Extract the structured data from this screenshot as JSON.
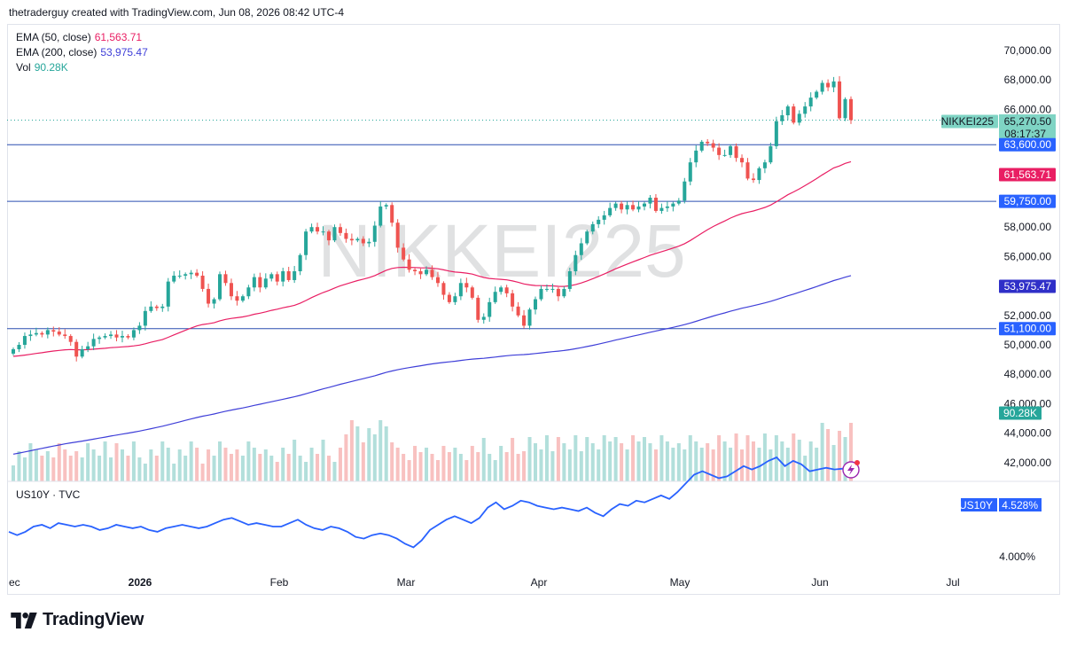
{
  "header": {
    "text": "thetraderguy created with TradingView.com, Jun 08, 2026 08:42 UTC-4"
  },
  "watermark": "NIKKEI225",
  "legend": {
    "ema50": {
      "label": "EMA (50, close)",
      "value": "61,563.71",
      "color": "#e91e63"
    },
    "ema200": {
      "label": "EMA (200, close)",
      "value": "53,975.47",
      "color": "#3f3fd8"
    },
    "vol": {
      "label": "Vol",
      "value": "90.28K",
      "color": "#26a69a"
    }
  },
  "price_tags": {
    "symbol": "NIKKEI225",
    "last": "65,270.50",
    "countdown": "08:17:37",
    "h1": "63,600.00",
    "ema50": "61,563.71",
    "h2": "59,750.00",
    "ema200": "53,975.47",
    "h3": "51,100.00",
    "vol": "90.28K"
  },
  "sub": {
    "title": "US10Y · TVC",
    "tag_symbol": "US10Y",
    "tag_value": "4.528%",
    "axis_label": "4.000%"
  },
  "logo_text": "TradingView",
  "colors": {
    "up": "#26a69a",
    "down": "#ef5350",
    "line_blue": "#2962ff",
    "ema50": "#e91e63",
    "ema200": "#3f3fd8",
    "hline": "#2a4fb0",
    "tag_blue": "#2962ff",
    "tag_green": "#26a69a",
    "tag_red": "#e91e63"
  },
  "chart_data": [
    {
      "type": "candlestick",
      "title": "NIKKEI225",
      "x_labels": [
        "ec",
        "2026",
        "Feb",
        "Mar",
        "Apr",
        "May",
        "Jun",
        "Jul"
      ],
      "y_ticks": [
        "70,000.00",
        "68,000.00",
        "66,000.00",
        "58,000.00",
        "56,000.00",
        "52,000.00",
        "50,000.00",
        "48,000.00",
        "46,000.00",
        "44,000.00",
        "42,000.00"
      ],
      "ylim": [
        41500,
        71000
      ],
      "horizontal_lines": [
        63600,
        59750,
        51100
      ],
      "closes": [
        49700,
        50000,
        50600,
        50700,
        50800,
        50700,
        51000,
        50900,
        50700,
        50600,
        50200,
        49200,
        49700,
        49900,
        50400,
        50500,
        50600,
        50700,
        50500,
        50600,
        50500,
        51000,
        51300,
        52300,
        52600,
        52500,
        52600,
        54300,
        54700,
        54700,
        54800,
        54900,
        54700,
        53800,
        52800,
        53100,
        54800,
        54200,
        53300,
        53000,
        53300,
        53900,
        54600,
        53900,
        54500,
        54800,
        54300,
        55000,
        54400,
        55000,
        56100,
        57700,
        58000,
        57700,
        57700,
        57100,
        58000,
        57600,
        57200,
        57100,
        57200,
        56900,
        57000,
        58100,
        59400,
        59500,
        58300,
        56600,
        55800,
        55100,
        55000,
        54800,
        55100,
        54600,
        54200,
        53400,
        52900,
        53300,
        54200,
        53900,
        53200,
        51700,
        51900,
        52900,
        53600,
        53900,
        53500,
        52600,
        52000,
        51300,
        52400,
        53100,
        53800,
        53800,
        53800,
        53300,
        53800,
        55000,
        56100,
        56900,
        57700,
        58200,
        58500,
        58800,
        59300,
        59600,
        59200,
        59500,
        59200,
        59400,
        59600,
        60000,
        59100,
        59300,
        59400,
        59600,
        59800,
        61100,
        62400,
        63200,
        63800,
        63700,
        63400,
        62900,
        62900,
        63500,
        62700,
        62400,
        61300,
        61200,
        62000,
        62400,
        63500,
        65200,
        65600,
        66200,
        65100,
        65700,
        66200,
        66800,
        67200,
        67800,
        67500,
        67900,
        65400,
        66700,
        65270.5
      ],
      "ema50": {
        "name": "EMA (50, close)",
        "last": 61563.71
      },
      "ema200": {
        "name": "EMA (200, close)",
        "last": 53975.47
      },
      "volume": {
        "name": "Vol",
        "last": "90.28K"
      }
    },
    {
      "type": "line",
      "title": "US10Y · TVC",
      "y_label_tick": "4.000%",
      "values": [
        4.17,
        4.15,
        4.17,
        4.2,
        4.21,
        4.19,
        4.22,
        4.21,
        4.2,
        4.21,
        4.2,
        4.18,
        4.19,
        4.21,
        4.2,
        4.19,
        4.2,
        4.18,
        4.17,
        4.19,
        4.2,
        4.21,
        4.2,
        4.19,
        4.2,
        4.22,
        4.24,
        4.25,
        4.23,
        4.21,
        4.22,
        4.21,
        4.2,
        4.2,
        4.22,
        4.24,
        4.21,
        4.19,
        4.18,
        4.2,
        4.19,
        4.17,
        4.14,
        4.13,
        4.15,
        4.16,
        4.15,
        4.13,
        4.1,
        4.08,
        4.12,
        4.18,
        4.21,
        4.24,
        4.26,
        4.24,
        4.22,
        4.25,
        4.31,
        4.34,
        4.3,
        4.32,
        4.35,
        4.34,
        4.32,
        4.31,
        4.3,
        4.31,
        4.3,
        4.29,
        4.31,
        4.28,
        4.26,
        4.3,
        4.33,
        4.32,
        4.35,
        4.34,
        4.36,
        4.38,
        4.36,
        4.4,
        4.45,
        4.5,
        4.52,
        4.5,
        4.48,
        4.49,
        4.52,
        4.55,
        4.53,
        4.55,
        4.58,
        4.6,
        4.55,
        4.58,
        4.56,
        4.52,
        4.53,
        4.54,
        4.53,
        4.535,
        4.528
      ]
    }
  ]
}
